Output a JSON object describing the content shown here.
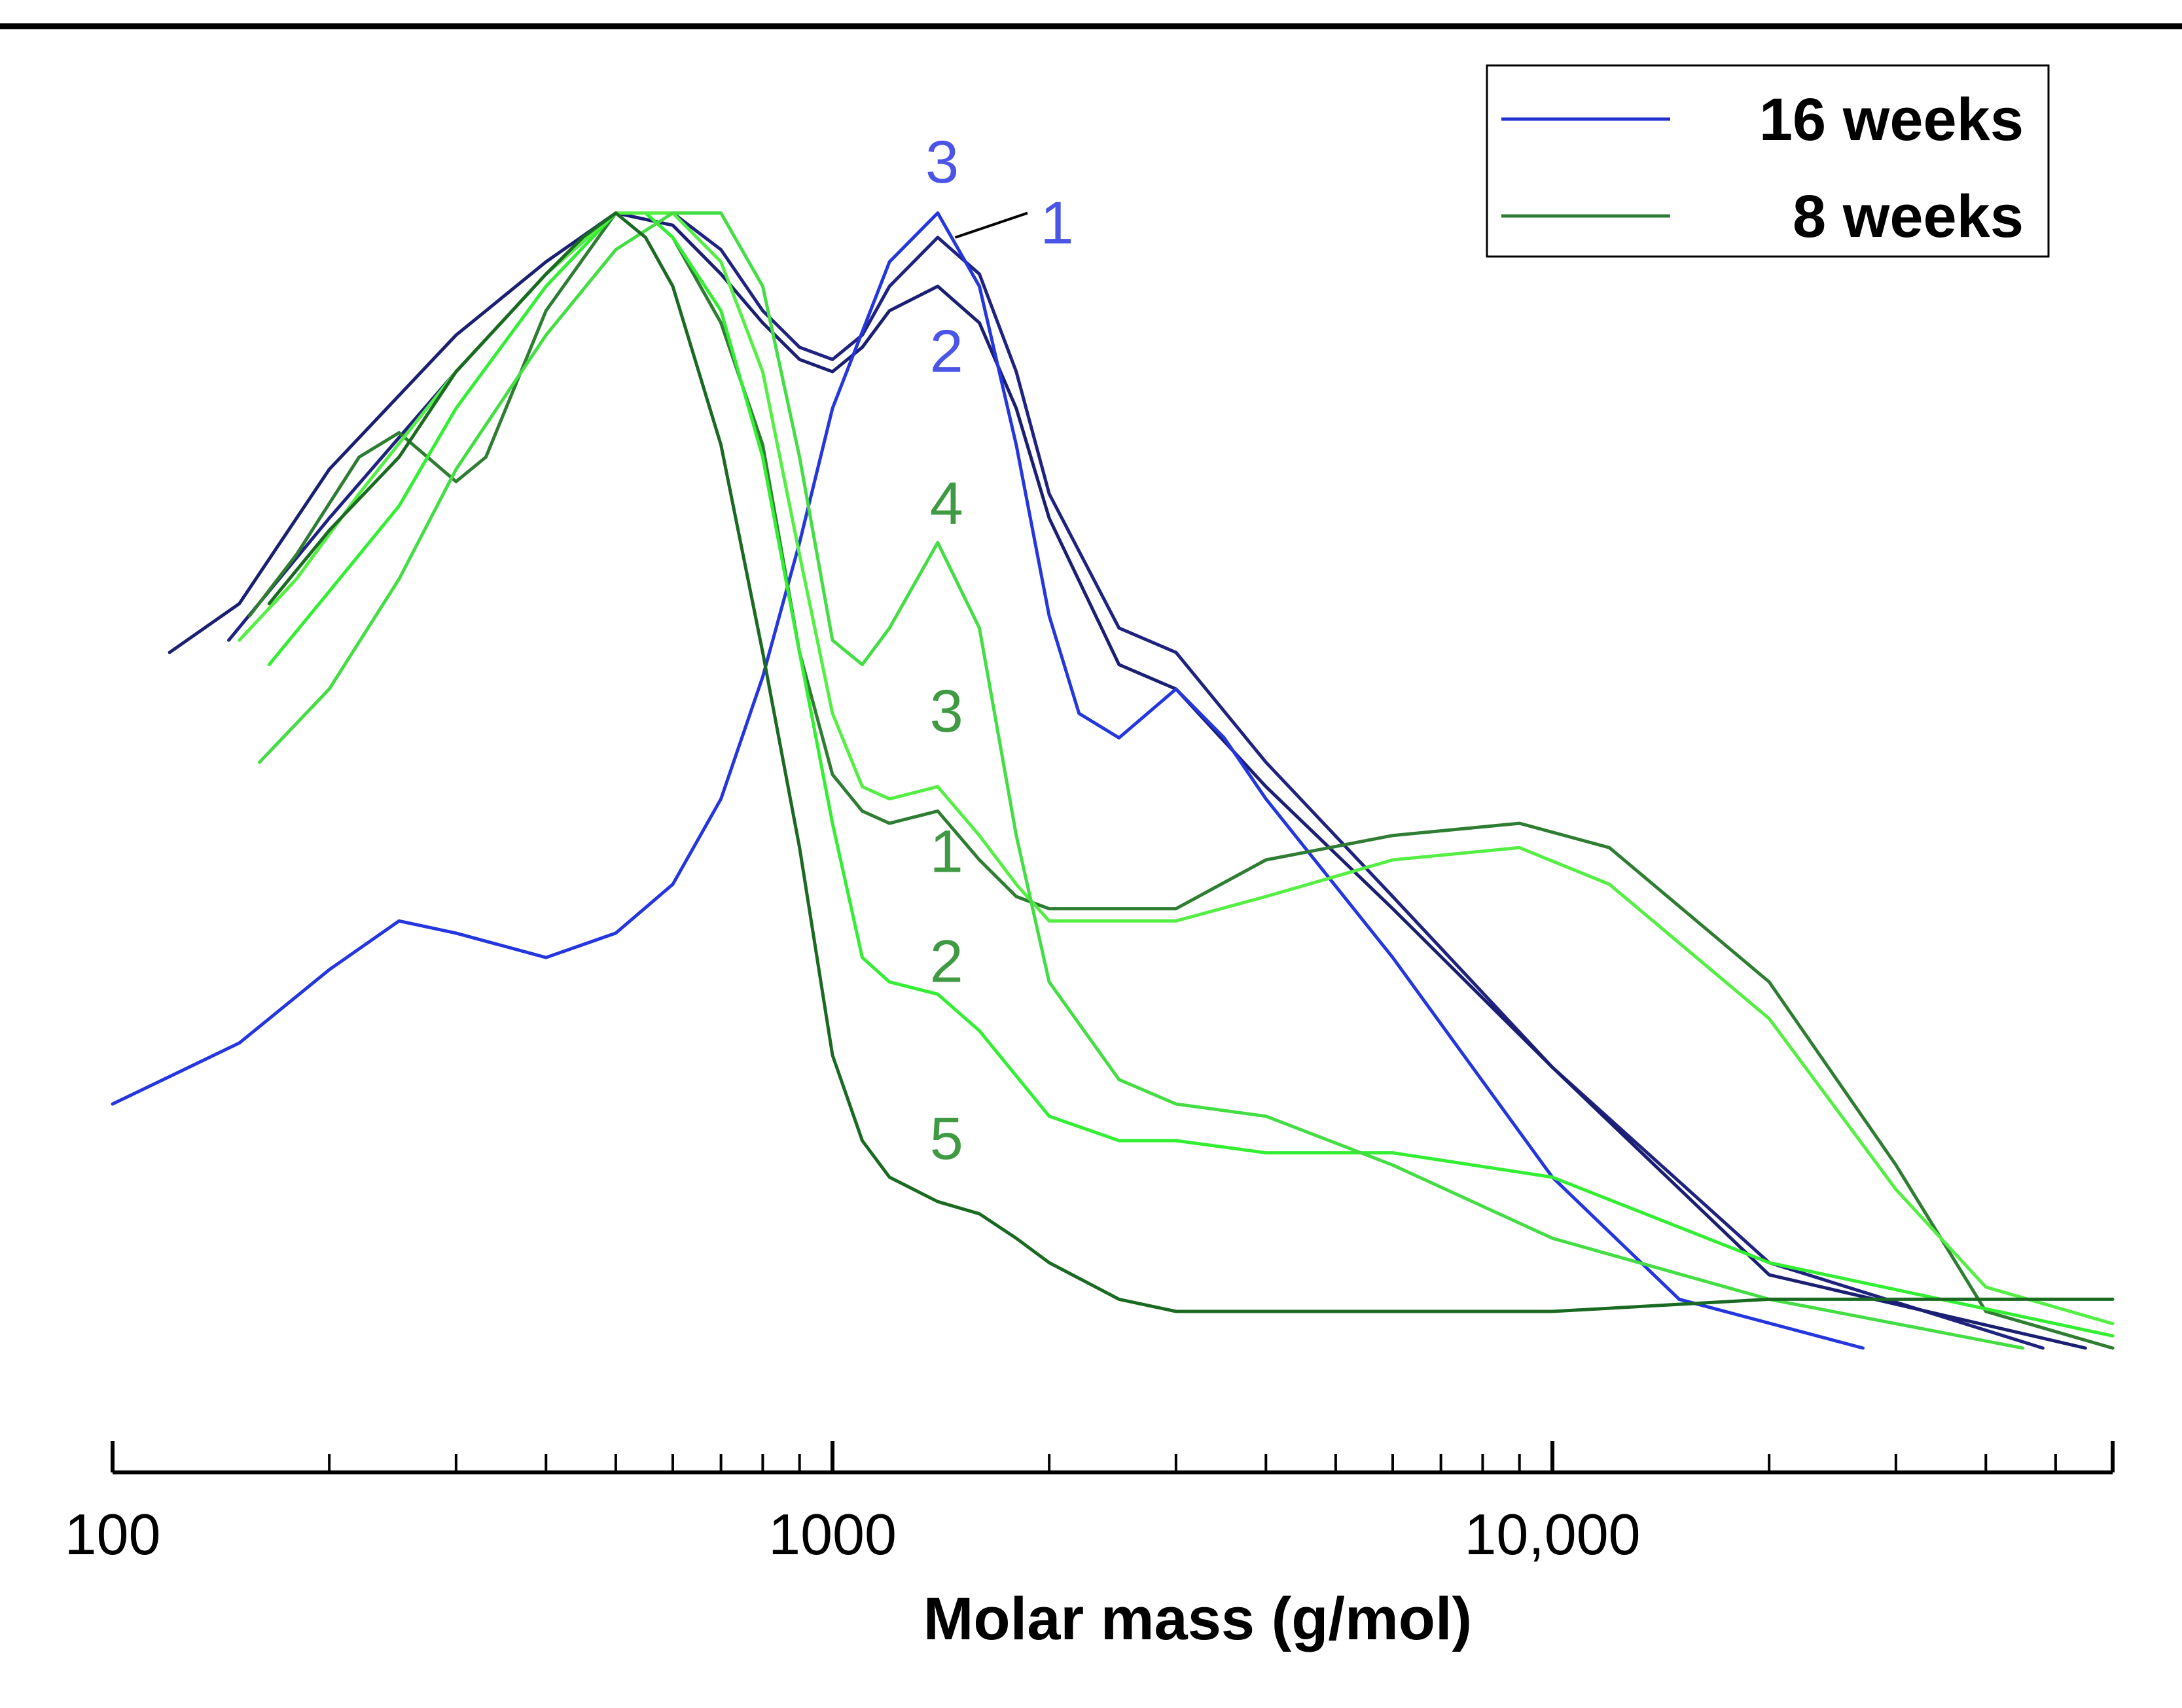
{
  "chart_data": {
    "type": "line",
    "title": "",
    "xlabel": "Molar mass (g/mol)",
    "ylabel": "",
    "xscale": "log",
    "xlim": [
      100,
      60000
    ],
    "ylim": [
      0,
      1
    ],
    "grid": false,
    "x_tick_labels": [
      {
        "value": 100,
        "label": "100"
      },
      {
        "value": 1000,
        "label": "1000"
      },
      {
        "value": 10000,
        "label": "10,000"
      }
    ],
    "legend": {
      "position": "top-right",
      "entries": [
        {
          "label": "16 weeks",
          "color": "#1f2fd0"
        },
        {
          "label": "8 weeks",
          "color": "#2e7d32"
        }
      ]
    },
    "series": [
      {
        "name": "16 weeks - 1",
        "group": "16 weeks",
        "color": "#1f237f",
        "x": [
          145,
          200,
          300,
          400,
          500,
          600,
          700,
          800,
          900,
          1000,
          1100,
          1200,
          1400,
          1600,
          1800,
          2000,
          2500,
          3000,
          4000,
          6000,
          10000,
          20000,
          48000
        ],
        "y": [
          0.58,
          0.68,
          0.8,
          0.88,
          0.93,
          0.93,
          0.9,
          0.85,
          0.82,
          0.81,
          0.83,
          0.87,
          0.91,
          0.88,
          0.8,
          0.7,
          0.59,
          0.57,
          0.48,
          0.37,
          0.23,
          0.07,
          0.0
        ]
      },
      {
        "name": "16 weeks - 2",
        "group": "16 weeks",
        "color": "#1a1f72",
        "x": [
          120,
          150,
          200,
          300,
          400,
          500,
          600,
          700,
          800,
          900,
          1000,
          1100,
          1200,
          1400,
          1600,
          1800,
          2000,
          2500,
          3000,
          4000,
          6000,
          10000,
          20000,
          55000
        ],
        "y": [
          0.57,
          0.61,
          0.72,
          0.83,
          0.89,
          0.93,
          0.92,
          0.88,
          0.84,
          0.81,
          0.8,
          0.82,
          0.85,
          0.87,
          0.84,
          0.77,
          0.68,
          0.56,
          0.54,
          0.46,
          0.36,
          0.23,
          0.06,
          0.0
        ]
      },
      {
        "name": "16 weeks - 3",
        "group": "16 weeks",
        "color": "#2436dd",
        "x": [
          100,
          150,
          200,
          250,
          300,
          400,
          500,
          600,
          700,
          800,
          900,
          1000,
          1200,
          1400,
          1600,
          1800,
          2000,
          2200,
          2500,
          3000,
          3500,
          4000,
          6000,
          10000,
          15000,
          27000
        ],
        "y": [
          0.2,
          0.25,
          0.31,
          0.35,
          0.34,
          0.32,
          0.34,
          0.38,
          0.45,
          0.55,
          0.66,
          0.77,
          0.89,
          0.93,
          0.87,
          0.74,
          0.6,
          0.52,
          0.5,
          0.54,
          0.5,
          0.45,
          0.32,
          0.14,
          0.04,
          0.0
        ]
      },
      {
        "name": "8 weeks - 1",
        "group": "8 weeks",
        "color": "#2e7d32",
        "x": [
          155,
          180,
          220,
          250,
          300,
          330,
          400,
          500,
          550,
          600,
          700,
          800,
          900,
          1000,
          1100,
          1200,
          1400,
          1600,
          1800,
          2000,
          2500,
          3000,
          4000,
          6000,
          9000,
          12000,
          20000,
          30000,
          40000,
          60000
        ],
        "y": [
          0.6,
          0.65,
          0.73,
          0.75,
          0.71,
          0.73,
          0.85,
          0.93,
          0.93,
          0.91,
          0.84,
          0.74,
          0.57,
          0.47,
          0.44,
          0.43,
          0.44,
          0.4,
          0.37,
          0.36,
          0.36,
          0.36,
          0.4,
          0.42,
          0.43,
          0.41,
          0.3,
          0.15,
          0.03,
          0.0
        ]
      },
      {
        "name": "8 weeks - 2",
        "group": "8 weeks",
        "color": "#33ee33",
        "x": [
          165,
          200,
          250,
          300,
          400,
          500,
          550,
          600,
          700,
          800,
          900,
          1000,
          1100,
          1200,
          1400,
          1600,
          2000,
          2500,
          3000,
          4000,
          6000,
          10000,
          20000,
          60000
        ],
        "y": [
          0.56,
          0.62,
          0.69,
          0.77,
          0.87,
          0.93,
          0.93,
          0.91,
          0.85,
          0.73,
          0.57,
          0.43,
          0.32,
          0.3,
          0.29,
          0.26,
          0.19,
          0.17,
          0.17,
          0.16,
          0.16,
          0.14,
          0.07,
          0.01
        ]
      },
      {
        "name": "8 weeks - 3",
        "group": "8 weeks",
        "color": "#55ee44",
        "x": [
          150,
          180,
          220,
          300,
          400,
          500,
          600,
          700,
          800,
          900,
          1000,
          1100,
          1200,
          1400,
          1600,
          1800,
          2000,
          2500,
          3000,
          4000,
          6000,
          9000,
          12000,
          20000,
          30000,
          40000,
          60000
        ],
        "y": [
          0.58,
          0.63,
          0.7,
          0.8,
          0.88,
          0.93,
          0.93,
          0.89,
          0.8,
          0.65,
          0.52,
          0.46,
          0.45,
          0.46,
          0.42,
          0.38,
          0.35,
          0.35,
          0.35,
          0.37,
          0.4,
          0.41,
          0.38,
          0.27,
          0.13,
          0.05,
          0.02
        ]
      },
      {
        "name": "8 weeks - 4",
        "group": "8 weeks",
        "color": "#44dd44",
        "x": [
          160,
          200,
          250,
          300,
          400,
          500,
          600,
          700,
          800,
          900,
          1000,
          1100,
          1200,
          1400,
          1600,
          1800,
          2000,
          2500,
          3000,
          4000,
          6000,
          10000,
          20000,
          45000
        ],
        "y": [
          0.48,
          0.54,
          0.63,
          0.72,
          0.83,
          0.9,
          0.93,
          0.93,
          0.87,
          0.73,
          0.58,
          0.56,
          0.59,
          0.66,
          0.59,
          0.42,
          0.3,
          0.22,
          0.2,
          0.19,
          0.15,
          0.09,
          0.04,
          0.0
        ]
      },
      {
        "name": "8 weeks - 5",
        "group": "8 weeks",
        "color": "#1b6a22",
        "x": [
          165,
          200,
          250,
          300,
          400,
          450,
          500,
          550,
          600,
          700,
          800,
          900,
          1000,
          1100,
          1200,
          1400,
          1600,
          1800,
          2000,
          2500,
          3000,
          4000,
          6000,
          10000,
          20000,
          60000
        ],
        "y": [
          0.61,
          0.67,
          0.73,
          0.8,
          0.88,
          0.91,
          0.93,
          0.91,
          0.87,
          0.74,
          0.57,
          0.41,
          0.24,
          0.17,
          0.14,
          0.12,
          0.11,
          0.09,
          0.07,
          0.04,
          0.03,
          0.03,
          0.03,
          0.03,
          0.04,
          0.04
        ]
      }
    ],
    "annotations": [
      {
        "text": "3",
        "group": "16 weeks",
        "x": 1420,
        "y": 0.955
      },
      {
        "text": "1",
        "group": "16 weeks",
        "x": 2050,
        "y": 0.905
      },
      {
        "text": "2",
        "group": "16 weeks",
        "x": 1440,
        "y": 0.8
      },
      {
        "text": "4",
        "group": "8 weeks",
        "x": 1440,
        "y": 0.675
      },
      {
        "text": "3",
        "group": "8 weeks",
        "x": 1440,
        "y": 0.505
      },
      {
        "text": "1",
        "group": "8 weeks",
        "x": 1440,
        "y": 0.39
      },
      {
        "text": "2",
        "group": "8 weeks",
        "x": 1440,
        "y": 0.3
      },
      {
        "text": "5",
        "group": "8 weeks",
        "x": 1440,
        "y": 0.155
      }
    ],
    "label_colors": {
      "16 weeks": "#4a55e8",
      "8 weeks": "#3f9a43"
    }
  }
}
